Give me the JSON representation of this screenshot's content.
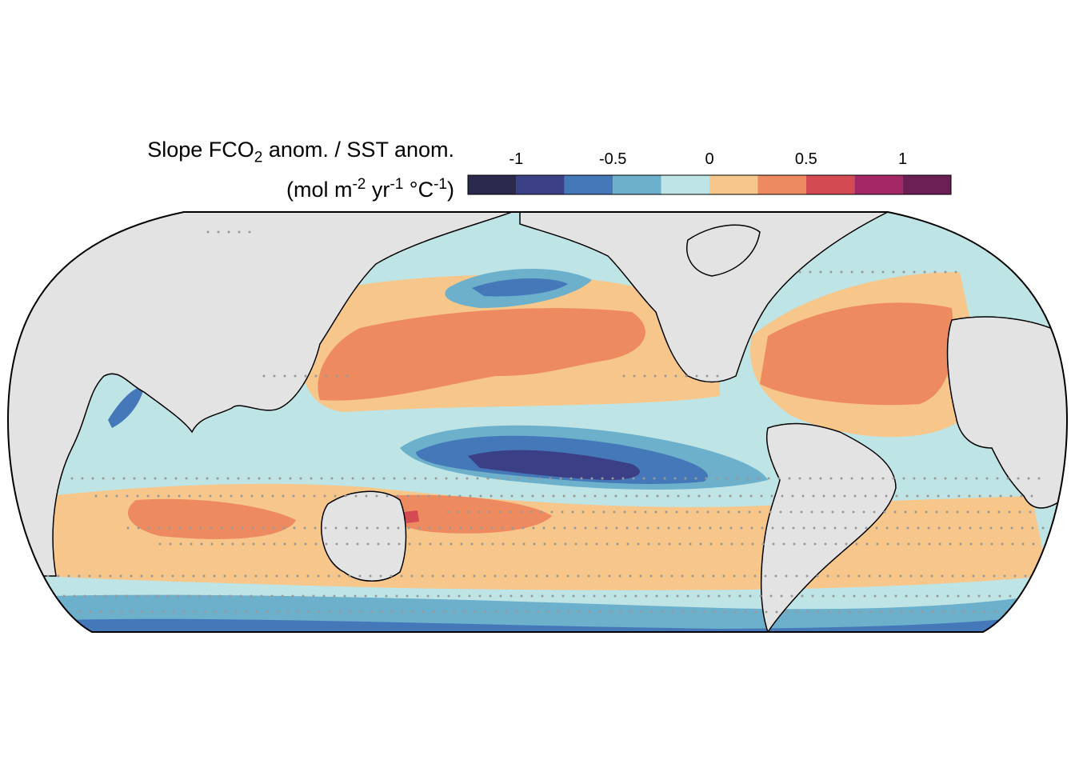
{
  "legend": {
    "title_line1": {
      "pre": "Slope FCO",
      "sub": "2",
      "post": " anom. / SST anom."
    },
    "title_line2": {
      "pre": "(mol m",
      "sup1": "-2",
      "mid1": " yr",
      "sup2": "-1",
      "mid2": " °C",
      "sup3": "-1",
      "post": ")"
    },
    "tick_labels": [
      "-1",
      "-0.5",
      "0",
      "0.5",
      "1"
    ],
    "tick_values": [
      -1,
      -0.5,
      0,
      0.5,
      1
    ],
    "range": [
      -1.25,
      1.25
    ],
    "bins": 10,
    "colors": [
      "#2b2a4c",
      "#3a3f86",
      "#4578b9",
      "#6cb0cb",
      "#bfe4e6",
      "#f7c68a",
      "#ee8a5f",
      "#d44a52",
      "#a52866",
      "#6b1f55"
    ]
  },
  "map": {
    "projection": "equal-earth",
    "central_longitude": 180,
    "land_color": "#e3e3e3",
    "stippling_color": "#999999"
  }
}
